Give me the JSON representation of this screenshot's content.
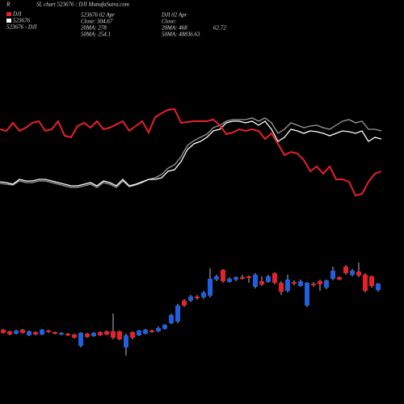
{
  "header": {
    "left": "R",
    "title": "SL chart 523676 : DJI MunafaSutra.com"
  },
  "legend": [
    {
      "label": "DJI",
      "color": "#e8202a"
    },
    {
      "label": "523676",
      "color": "#ffffff"
    },
    {
      "label": "523676 - DJI"
    }
  ],
  "info_left": [
    "523676 02 Apr",
    "Close: 304.67",
    "20MA: 278",
    "50MA: 254.1"
  ],
  "info_right": [
    "DJI 02 Apr",
    "Close:",
    "20MA: 468",
    "50MA: 48836.63"
  ],
  "info_right_extra": "62.72",
  "chart_data": {
    "type": "candlestick",
    "ylim": [
      0,
      500
    ],
    "up_color": "#1f5fe0",
    "down_color": "#e8202a",
    "candles": {
      "open": [
        92,
        90,
        87,
        92,
        85,
        89,
        86,
        91,
        89,
        86,
        87,
        86,
        72,
        87,
        84,
        89,
        90,
        90,
        90,
        70,
        89,
        85,
        87,
        91,
        90,
        93,
        100,
        102,
        128,
        128,
        133,
        132,
        134,
        154,
        166,
        151,
        154,
        157,
        158,
        145,
        152,
        151,
        162,
        150,
        140,
        151,
        146,
        122,
        149,
        152,
        144,
        155,
        157,
        170,
        160,
        164,
        160,
        158,
        141
      ],
      "high": [
        93,
        91,
        92,
        93,
        91,
        90,
        93,
        92,
        90,
        89,
        88,
        87,
        89,
        88,
        89,
        90,
        91,
        112,
        91,
        87,
        90,
        92,
        93,
        92,
        96,
        99,
        112,
        124,
        130,
        135,
        135,
        140,
        168,
        160,
        167,
        157,
        158,
        160,
        159,
        162,
        158,
        160,
        163,
        152,
        160,
        153,
        154,
        151,
        151,
        154,
        154,
        170,
        158,
        172,
        167,
        175,
        162,
        159,
        150
      ],
      "low": [
        87,
        85,
        86,
        87,
        84,
        85,
        85,
        88,
        86,
        85,
        84,
        81,
        70,
        82,
        83,
        84,
        85,
        80,
        79,
        60,
        80,
        84,
        86,
        88,
        89,
        92,
        99,
        100,
        120,
        126,
        129,
        130,
        132,
        152,
        150,
        150,
        152,
        154,
        150,
        143,
        146,
        150,
        148,
        135,
        138,
        147,
        145,
        120,
        145,
        140,
        142,
        153,
        153,
        160,
        158,
        157,
        138,
        144,
        139
      ],
      "close": [
        88,
        86,
        91,
        88,
        90,
        86,
        92,
        89,
        87,
        88,
        85,
        82,
        88,
        83,
        88,
        85,
        86,
        82,
        80,
        85,
        82,
        91,
        92,
        89,
        94,
        98,
        110,
        122,
        122,
        133,
        131,
        138,
        155,
        158,
        152,
        155,
        157,
        155,
        156,
        160,
        148,
        158,
        150,
        139,
        154,
        149,
        152,
        150,
        147,
        148,
        153,
        165,
        154,
        162,
        165,
        159,
        140,
        146,
        149
      ]
    },
    "series": [
      {
        "color": "#9a9a9a",
        "values": [
          273,
          272,
          271,
          276,
          274,
          274,
          276,
          276,
          274,
          272,
          270,
          268,
          268,
          270,
          272,
          268,
          274,
          272,
          268,
          276,
          269,
          271,
          274,
          278,
          280,
          284,
          292,
          296,
          306,
          320,
          326,
          330,
          334,
          342,
          345,
          350,
          352,
          352,
          352,
          354,
          350,
          354,
          348,
          335,
          340,
          348,
          345,
          342,
          344,
          345,
          342,
          340,
          345,
          350,
          352,
          348,
          350,
          340,
          340,
          338
        ]
      },
      {
        "color": "#ffffff",
        "values": [
          275,
          274,
          272,
          278,
          276,
          276,
          278,
          278,
          276,
          274,
          272,
          270,
          270,
          272,
          274,
          270,
          276,
          274,
          270,
          278,
          270,
          272,
          275,
          278,
          278,
          280,
          288,
          290,
          300,
          315,
          322,
          325,
          330,
          338,
          340,
          348,
          350,
          350,
          348,
          350,
          345,
          350,
          340,
          325,
          330,
          340,
          338,
          335,
          338,
          337,
          335,
          332,
          335,
          338,
          337,
          335,
          338,
          325,
          330,
          328
        ]
      },
      {
        "color": "#e8202a",
        "values": [
          340,
          338,
          348,
          338,
          342,
          348,
          350,
          338,
          340,
          350,
          332,
          330,
          344,
          348,
          342,
          350,
          340,
          342,
          346,
          350,
          338,
          344,
          350,
          336,
          355,
          360,
          364,
          365,
          348,
          349,
          350,
          350,
          350,
          352,
          345,
          334,
          336,
          340,
          338,
          340,
          338,
          328,
          335,
          322,
          308,
          312,
          310,
          302,
          288,
          294,
          285,
          294,
          278,
          278,
          275,
          258,
          260,
          275,
          285,
          288
        ]
      }
    ]
  }
}
